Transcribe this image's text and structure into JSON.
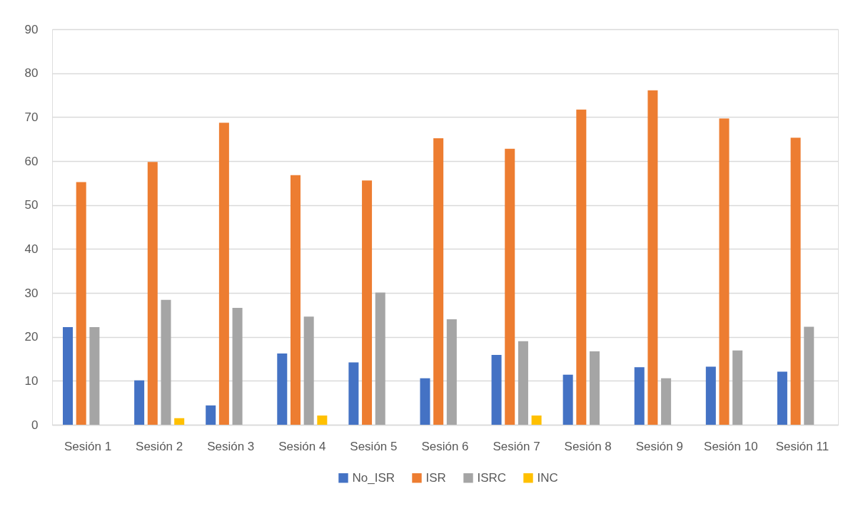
{
  "chart_data": {
    "type": "bar",
    "categories": [
      "Sesión 1",
      "Sesión 2",
      "Sesión 3",
      "Sesión 4",
      "Sesión 5",
      "Sesión 6",
      "Sesión 7",
      "Sesión 8",
      "Sesión 9",
      "Sesión 10",
      "Sesión 11"
    ],
    "series": [
      {
        "name": "No_ISR",
        "color": "#4472c4",
        "values": [
          22.2,
          10.1,
          4.4,
          16.2,
          14.2,
          10.6,
          15.9,
          11.4,
          13.1,
          13.2,
          12.1
        ]
      },
      {
        "name": "ISR",
        "color": "#ed7d31",
        "values": [
          55.2,
          59.8,
          68.7,
          56.8,
          55.6,
          65.2,
          62.8,
          71.7,
          76.1,
          69.7,
          65.3
        ]
      },
      {
        "name": "ISRC",
        "color": "#a5a5a5",
        "values": [
          22.2,
          28.4,
          26.6,
          24.6,
          30.1,
          24.0,
          19.0,
          16.7,
          10.6,
          16.9,
          22.3
        ]
      },
      {
        "name": "INC",
        "color": "#ffc000",
        "values": [
          0,
          1.5,
          0,
          2.1,
          0,
          0,
          2.1,
          0,
          0,
          0,
          0
        ]
      }
    ],
    "ylim": [
      0,
      90
    ],
    "yticks": [
      0,
      10,
      20,
      30,
      40,
      50,
      60,
      70,
      80,
      90
    ],
    "grid": "y",
    "legend": "bottom"
  }
}
